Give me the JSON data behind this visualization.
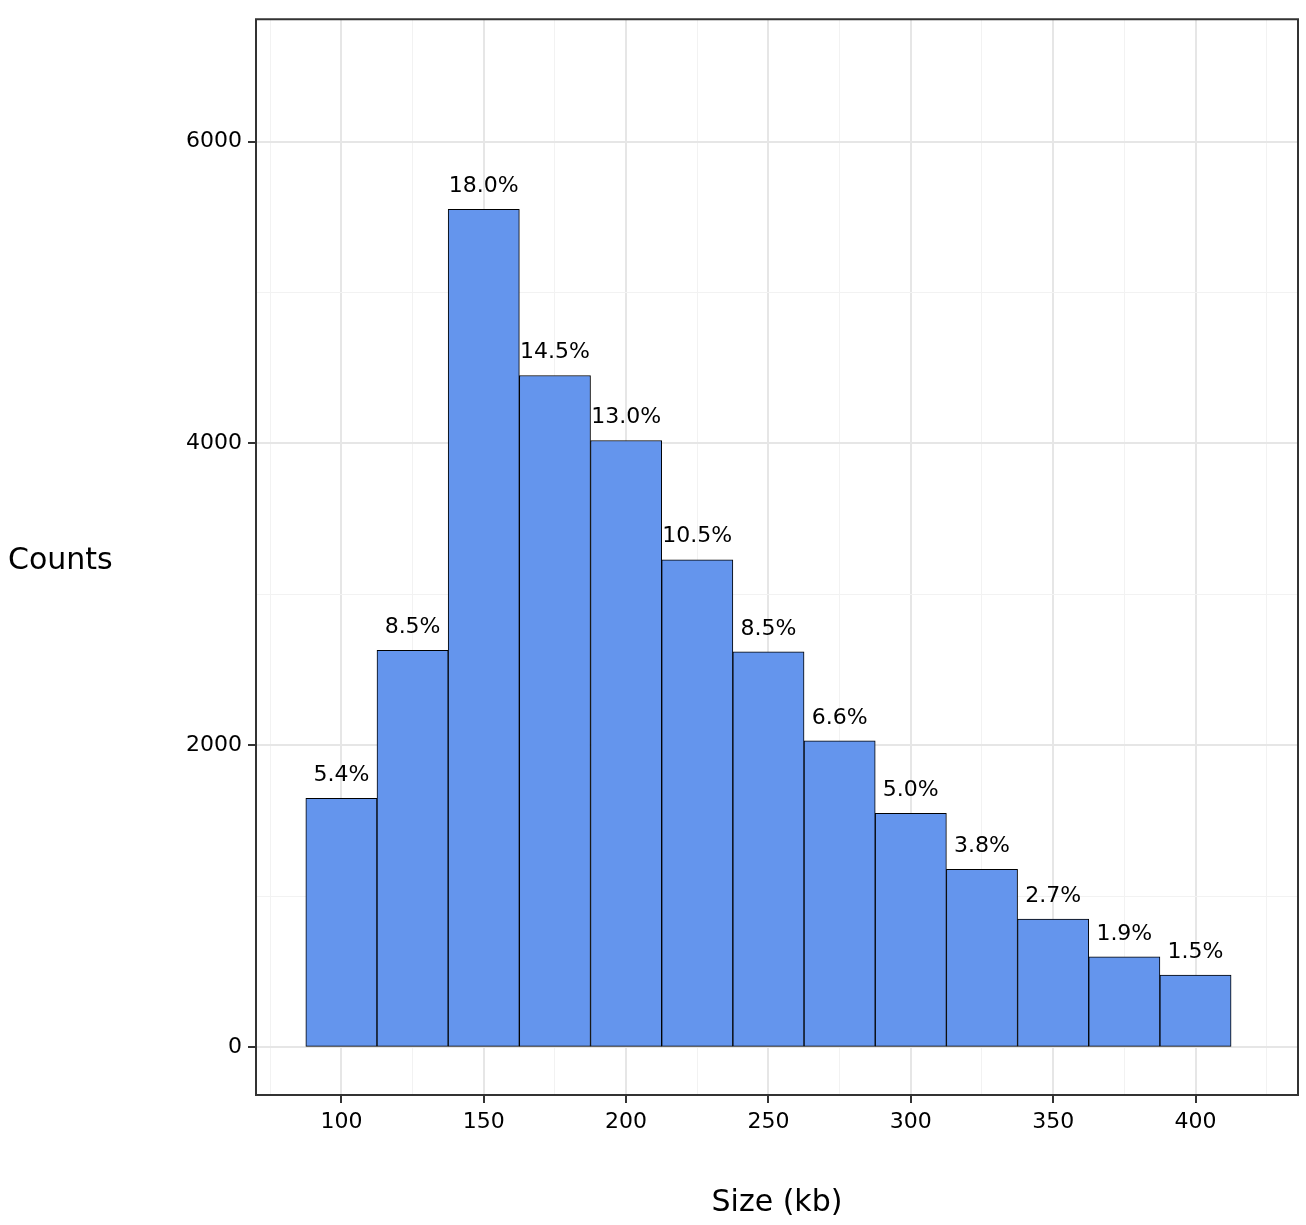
{
  "chart_data": {
    "type": "histogram",
    "xlabel": "Size (kb)",
    "ylabel": "Counts",
    "bins": [
      87.5,
      112.5,
      137.5,
      162.5,
      187.5,
      212.5,
      237.5,
      262.5,
      287.5,
      312.5,
      337.5,
      362.5,
      387.5,
      412.5
    ],
    "values": [
      1650,
      2630,
      5550,
      4450,
      4020,
      3230,
      2620,
      2030,
      1550,
      1180,
      850,
      600,
      480
    ],
    "annotations": [
      {
        "text": "5.4%",
        "x": 100,
        "y": 1650
      },
      {
        "text": "8.5%",
        "x": 125,
        "y": 2630
      },
      {
        "text": "18.0%",
        "x": 150,
        "y": 5550
      },
      {
        "text": "14.5%",
        "x": 175,
        "y": 4450
      },
      {
        "text": "13.0%",
        "x": 200,
        "y": 4020
      },
      {
        "text": "10.5%",
        "x": 225,
        "y": 3230
      },
      {
        "text": "8.5%",
        "x": 250,
        "y": 2620
      },
      {
        "text": "6.6%",
        "x": 275,
        "y": 2030
      },
      {
        "text": "5.0%",
        "x": 300,
        "y": 1550
      },
      {
        "text": "3.8%",
        "x": 325,
        "y": 1180
      },
      {
        "text": "2.7%",
        "x": 350,
        "y": 850
      },
      {
        "text": "1.9%",
        "x": 375,
        "y": 600
      },
      {
        "text": "1.5%",
        "x": 400,
        "y": 480
      }
    ],
    "color": "#6495ed",
    "xlim": [
      70,
      436
    ],
    "ylim": [
      -315,
      6810
    ],
    "xticks": [
      {
        "value": 75,
        "label": null
      },
      100,
      {
        "value": 125,
        "label": null
      },
      150,
      {
        "value": 175,
        "label": null
      },
      200,
      {
        "value": 225,
        "label": null
      },
      250,
      {
        "value": 275,
        "label": null
      },
      300,
      {
        "value": 325,
        "label": null
      },
      350,
      {
        "value": 375,
        "label": null
      },
      400,
      {
        "value": 425,
        "label": null
      }
    ],
    "yticks": [
      0,
      {
        "value": 1000,
        "label": null
      },
      2000,
      {
        "value": 3000,
        "label": null
      },
      4000,
      {
        "value": 5000,
        "label": null
      },
      6000
    ],
    "grid": true,
    "legend": false
  }
}
